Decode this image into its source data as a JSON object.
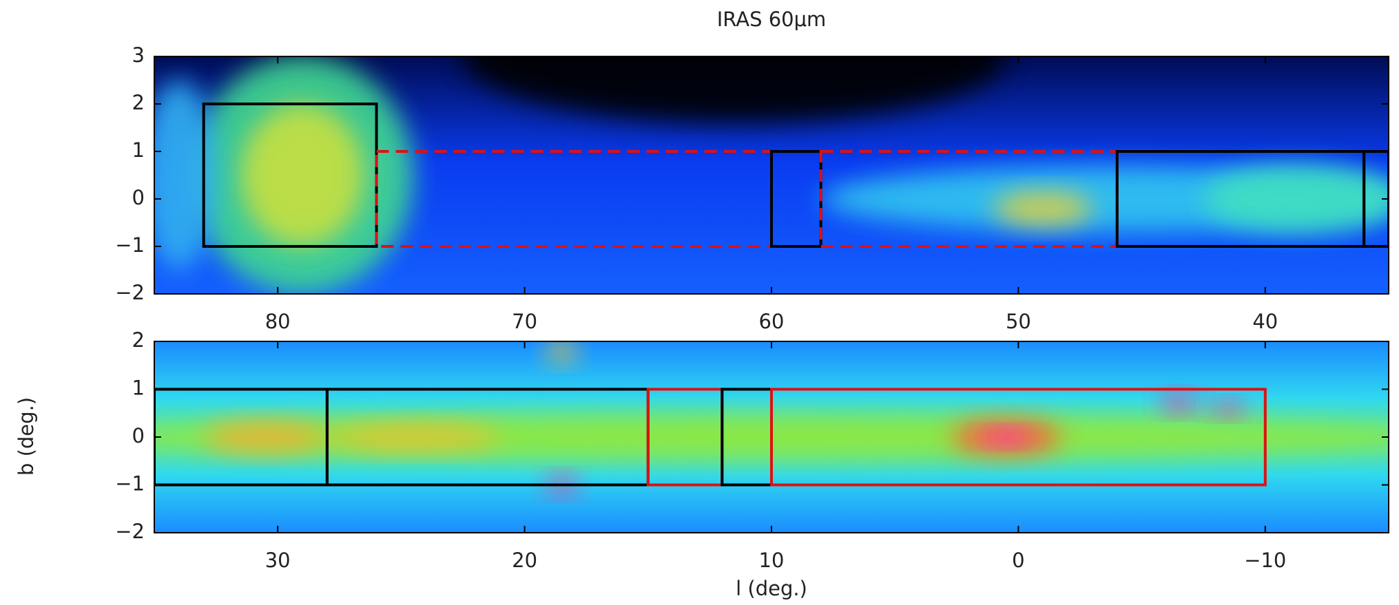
{
  "chart_data": [
    {
      "type": "image",
      "title": "IRAS 60μm",
      "y_label": "b (deg.)",
      "xlim": [
        85,
        35
      ],
      "ylim": [
        -2,
        3
      ],
      "xticks": [
        80,
        70,
        60,
        50,
        40
      ],
      "yticks": [
        {
          "value": -2,
          "label": "−2"
        },
        {
          "value": -1,
          "label": "−1"
        },
        0,
        1,
        2,
        3
      ],
      "boxes": [
        {
          "l": [
            83,
            76
          ],
          "b": [
            -1,
            2
          ],
          "color": "#000000",
          "dashed": false
        },
        {
          "l": [
            76,
            60
          ],
          "b": [
            -1,
            1
          ],
          "color": "#e01010",
          "dashed": true
        },
        {
          "l": [
            60,
            58
          ],
          "b": [
            -1,
            1
          ],
          "color": "#000000",
          "dashed": false
        },
        {
          "l": [
            58,
            46
          ],
          "b": [
            -1,
            1
          ],
          "color": "#e01010",
          "dashed": true
        },
        {
          "l": [
            46,
            36
          ],
          "b": [
            -1,
            1
          ],
          "color": "#000000",
          "dashed": false
        },
        {
          "l": [
            36,
            35
          ],
          "b": [
            -1,
            1
          ],
          "color": "#000000",
          "dashed": false
        }
      ]
    },
    {
      "type": "image",
      "x_label": "l (deg.)",
      "xlim": [
        35,
        -15
      ],
      "ylim": [
        -2,
        2
      ],
      "xticks": [
        30,
        20,
        10,
        0,
        {
          "value": -10,
          "label": "−10"
        }
      ],
      "yticks": [
        {
          "value": -2,
          "label": "−2"
        },
        {
          "value": -1,
          "label": "−1"
        },
        0,
        1,
        2
      ],
      "boxes": [
        {
          "l": [
            35,
            28
          ],
          "b": [
            -1,
            1
          ],
          "color": "#000000",
          "dashed": false
        },
        {
          "l": [
            28,
            15
          ],
          "b": [
            -1,
            1
          ],
          "color": "#000000",
          "dashed": false
        },
        {
          "l": [
            15,
            12
          ],
          "b": [
            -1,
            1
          ],
          "color": "#e01010",
          "dashed": false
        },
        {
          "l": [
            12,
            10
          ],
          "b": [
            -1,
            1
          ],
          "color": "#000000",
          "dashed": false
        },
        {
          "l": [
            10,
            -10
          ],
          "b": [
            -1,
            1
          ],
          "color": "#e01010",
          "dashed": false
        }
      ]
    }
  ]
}
